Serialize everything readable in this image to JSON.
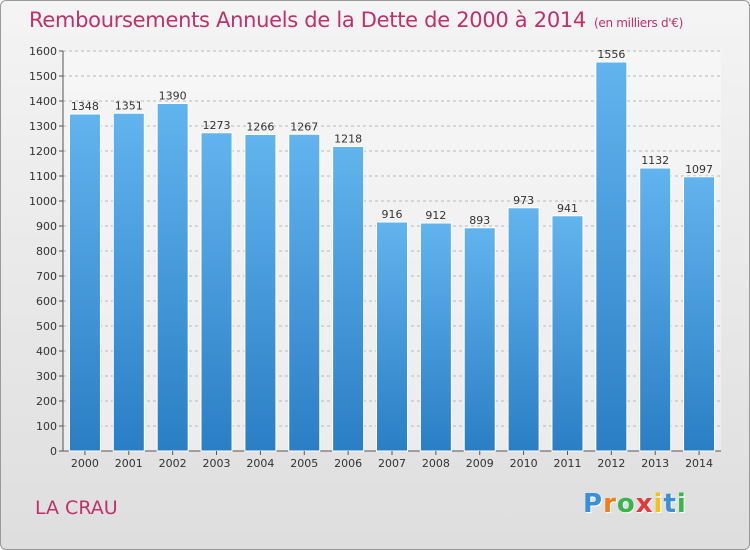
{
  "chart_data": {
    "type": "bar",
    "title": "Remboursements Annuels de la Dette de 2000 à 2014",
    "unit_note": "(en milliers d'€)",
    "categories": [
      "2000",
      "2001",
      "2002",
      "2003",
      "2004",
      "2005",
      "2006",
      "2007",
      "2008",
      "2009",
      "2010",
      "2011",
      "2012",
      "2013",
      "2014"
    ],
    "values": [
      1348,
      1351,
      1390,
      1273,
      1266,
      1267,
      1218,
      916,
      912,
      893,
      973,
      941,
      1556,
      1132,
      1097
    ],
    "ylim": [
      0,
      1600
    ],
    "yticks": [
      0,
      100,
      200,
      300,
      400,
      500,
      600,
      700,
      800,
      900,
      1000,
      1100,
      1200,
      1300,
      1400,
      1500,
      1600
    ],
    "grid": true,
    "xlabel": "",
    "ylabel": ""
  },
  "place_name": "LA CRAU",
  "brand": {
    "letters": [
      "P",
      "r",
      "o",
      "x",
      "i",
      "t",
      "i"
    ],
    "colors": [
      "#3a8fd6",
      "#f07d1a",
      "#3ab54a",
      "#e23a3a",
      "#f2c21b",
      "#3a8fd6",
      "#3ab54a"
    ]
  },
  "colors": {
    "title": "#c0306a",
    "bar_top": "#62b4ee",
    "bar_bottom": "#2a7ec4",
    "grid": "#b8b8b8"
  }
}
